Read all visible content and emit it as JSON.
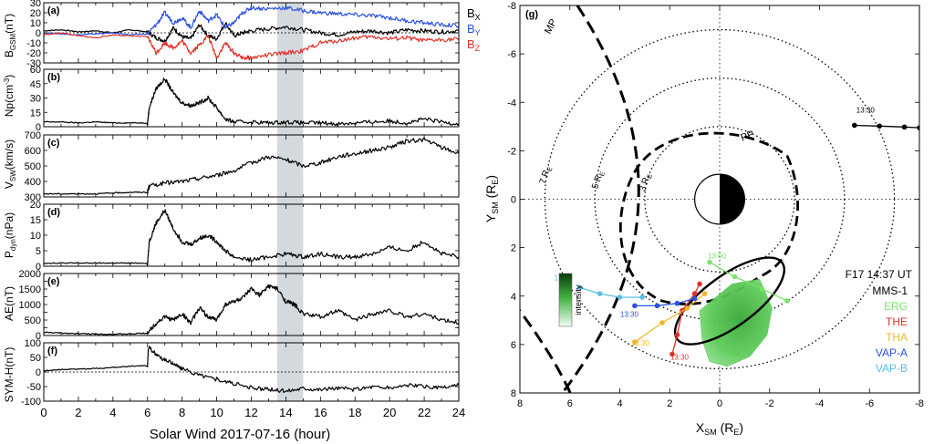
{
  "chart_data": [
    {
      "type": "line",
      "panel": "(a)",
      "ylabel": "B_GSM(nT)",
      "ylim": [
        -30,
        30
      ],
      "yticks": [
        -30,
        -20,
        -10,
        0,
        10,
        20,
        30
      ],
      "xlim": [
        0,
        24
      ],
      "series": [
        {
          "name": "B_X",
          "color": "#000000",
          "x": [
            0,
            1,
            2,
            3,
            4,
            5,
            6,
            6.5,
            7,
            7.5,
            8,
            8.5,
            9,
            9.5,
            10,
            10.5,
            11,
            11.5,
            12,
            13,
            14,
            15,
            16,
            17,
            18,
            19,
            20,
            21,
            22,
            23,
            24
          ],
          "values": [
            2,
            3,
            1,
            2,
            0,
            3,
            1,
            -5,
            -8,
            5,
            -4,
            -6,
            8,
            -3,
            -6,
            10,
            -3,
            0,
            2,
            4,
            6,
            3,
            0,
            -2,
            1,
            2,
            0,
            3,
            2,
            1,
            2
          ]
        },
        {
          "name": "B_Y",
          "color": "#2b50e0",
          "x": [
            0,
            1,
            2,
            3,
            4,
            5,
            6,
            6.5,
            7,
            7.5,
            8,
            8.5,
            9,
            9.5,
            10,
            10.5,
            11,
            11.5,
            12,
            13,
            14,
            15,
            16,
            17,
            18,
            19,
            20,
            21,
            22,
            23,
            24
          ],
          "values": [
            0,
            -1,
            -2,
            -1,
            0,
            -2,
            -1,
            8,
            20,
            10,
            15,
            5,
            22,
            12,
            18,
            5,
            10,
            20,
            25,
            24,
            25,
            22,
            20,
            19,
            18,
            17,
            15,
            12,
            10,
            8,
            7
          ]
        },
        {
          "name": "B_Z",
          "color": "#e0312a",
          "x": [
            0,
            1,
            2,
            3,
            4,
            5,
            6,
            6.5,
            7,
            7.5,
            8,
            8.5,
            9,
            9.5,
            10,
            10.5,
            11,
            11.5,
            12,
            13,
            14,
            15,
            16,
            17,
            18,
            19,
            20,
            21,
            22,
            23,
            24
          ],
          "values": [
            -2,
            0,
            -3,
            -5,
            -2,
            -3,
            -4,
            -20,
            -10,
            -15,
            -8,
            -20,
            -12,
            -3,
            -25,
            -10,
            -20,
            -25,
            -25,
            -22,
            -20,
            -18,
            -10,
            -8,
            -5,
            -4,
            -6,
            -5,
            -8,
            -7,
            -6
          ]
        }
      ]
    },
    {
      "type": "line",
      "panel": "(b)",
      "ylabel": "Np(cm⁻³)",
      "ylim": [
        0,
        60
      ],
      "yticks": [
        0,
        15,
        30,
        45,
        60
      ],
      "yticklabels": [
        "0",
        "15",
        "30",
        "45",
        "60"
      ],
      "xlim": [
        0,
        24
      ],
      "series": [
        {
          "name": "Np",
          "color": "#000000",
          "x": [
            0,
            1,
            2,
            3,
            4,
            5,
            6,
            6.1,
            6.5,
            7,
            7.5,
            8,
            8.5,
            9,
            9.5,
            10,
            10.5,
            11,
            12,
            13,
            14,
            15,
            16,
            17,
            18,
            19,
            20,
            21,
            22,
            23,
            24
          ],
          "values": [
            5,
            5,
            4,
            5,
            4,
            4,
            4,
            20,
            40,
            50,
            35,
            25,
            22,
            25,
            30,
            20,
            8,
            5,
            5,
            4,
            5,
            4,
            4,
            3,
            4,
            5,
            6,
            4,
            8,
            5,
            3
          ]
        }
      ]
    },
    {
      "type": "line",
      "panel": "(c)",
      "ylabel": "V_SW(km/s)",
      "ylim": [
        300,
        700
      ],
      "yticks": [
        300,
        400,
        500,
        600,
        700
      ],
      "yticklabels": [
        "300",
        "400",
        "500",
        "600",
        "700"
      ],
      "xlim": [
        0,
        24
      ],
      "series": [
        {
          "name": "V_SW",
          "color": "#000000",
          "x": [
            0,
            1,
            2,
            3,
            4,
            5,
            6,
            6.1,
            7,
            8,
            9,
            10,
            11,
            12,
            13,
            14,
            15,
            16,
            17,
            18,
            19,
            20,
            21,
            22,
            23,
            24
          ],
          "values": [
            320,
            320,
            320,
            320,
            325,
            330,
            330,
            370,
            390,
            400,
            420,
            440,
            470,
            520,
            560,
            540,
            500,
            520,
            560,
            580,
            600,
            620,
            660,
            670,
            620,
            580
          ]
        }
      ]
    },
    {
      "type": "line",
      "panel": "(d)",
      "ylabel": "P_dyn(nPa)",
      "ylim": [
        0,
        20
      ],
      "yticks": [
        0,
        5,
        10,
        15,
        20
      ],
      "yticklabels": [
        "0",
        "5",
        "10",
        "15",
        "20"
      ],
      "xlim": [
        0,
        24
      ],
      "series": [
        {
          "name": "P_dyn",
          "color": "#000000",
          "x": [
            0,
            1,
            2,
            3,
            4,
            5,
            6,
            6.1,
            6.5,
            7,
            7.5,
            8,
            8.5,
            9,
            9.5,
            10,
            10.5,
            11,
            12,
            13,
            14,
            15,
            16,
            17,
            18,
            19,
            20,
            21,
            22,
            23,
            24
          ],
          "values": [
            1,
            1,
            1,
            1,
            1,
            1,
            1,
            8,
            14,
            18,
            12,
            8,
            7,
            9,
            10,
            8,
            5,
            3,
            2,
            3,
            4,
            3,
            4,
            3,
            3,
            4,
            6,
            5,
            8,
            4,
            3
          ]
        }
      ]
    },
    {
      "type": "line",
      "panel": "(e)",
      "ylabel": "AE(nT)",
      "ylim": [
        0,
        2000
      ],
      "yticks": [
        0,
        250,
        500,
        750,
        1000,
        1250,
        1500,
        1750,
        2000
      ],
      "yticklabels": [
        "0",
        "",
        "500",
        "",
        "1000",
        "",
        "1500",
        "",
        "2000"
      ],
      "xlim": [
        0,
        24
      ],
      "series": [
        {
          "name": "AE",
          "color": "#000000",
          "x": [
            0,
            1,
            2,
            3,
            4,
            5,
            6,
            6.5,
            7,
            7.5,
            8,
            8.5,
            9,
            9.5,
            10,
            10.5,
            11,
            11.5,
            12,
            12.5,
            13,
            13.5,
            14,
            14.5,
            15,
            16,
            17,
            18,
            19,
            20,
            21,
            22,
            23,
            24
          ],
          "values": [
            100,
            80,
            60,
            50,
            40,
            50,
            80,
            400,
            600,
            500,
            700,
            400,
            900,
            600,
            500,
            1000,
            1100,
            1200,
            1500,
            1300,
            1600,
            1500,
            1100,
            1000,
            700,
            600,
            800,
            500,
            700,
            800,
            600,
            700,
            500,
            400
          ]
        }
      ]
    },
    {
      "type": "line",
      "panel": "(f)",
      "ylabel": "SYM-H(nT)",
      "ylim": [
        -100,
        100
      ],
      "yticks": [
        -100,
        -50,
        0,
        50,
        100
      ],
      "yticklabels": [
        "-100",
        "-50",
        "0",
        "50",
        "100"
      ],
      "xlim": [
        0,
        24
      ],
      "xticks": [
        0,
        2,
        4,
        6,
        8,
        10,
        12,
        14,
        16,
        18,
        20,
        22,
        24
      ],
      "xlabel": "Solar Wind 2017-07-16 (hour)",
      "series": [
        {
          "name": "SYM-H",
          "color": "#000000",
          "x": [
            0,
            1,
            2,
            3,
            4,
            5,
            6,
            6.05,
            6.5,
            7,
            7.5,
            8,
            9,
            10,
            11,
            12,
            13,
            14,
            15,
            16,
            17,
            18,
            19,
            20,
            21,
            22,
            23,
            24
          ],
          "values": [
            5,
            8,
            10,
            12,
            15,
            20,
            22,
            85,
            60,
            40,
            30,
            10,
            -10,
            -25,
            -40,
            -55,
            -60,
            -65,
            -55,
            -60,
            -55,
            -60,
            -50,
            -55,
            -45,
            -50,
            -55,
            -45
          ]
        }
      ]
    },
    {
      "type": "scatter",
      "panel": "(g)",
      "xlabel": "X_SM (R_E)",
      "ylabel": "Y_SM (R_E)",
      "xlim": [
        8,
        -8
      ],
      "ylim": [
        -8,
        8
      ],
      "xticks": [
        8,
        6,
        4,
        2,
        0,
        -2,
        -4,
        -6,
        -8
      ],
      "yticks": [
        -8,
        -6,
        -4,
        -2,
        0,
        2,
        4,
        6,
        8
      ],
      "circle_labels": [
        "7 R_E",
        "5 R_E",
        "3 R_E"
      ],
      "boundary_labels": [
        "MP",
        "PP"
      ],
      "colorbar_label": "intensity",
      "legend": {
        "title": "F17 14:37 UT",
        "entries": [
          {
            "label": "MMS-1",
            "color": "#000000"
          },
          {
            "label": "ERG",
            "color": "#7be36b"
          },
          {
            "label": "THE",
            "color": "#e0312a"
          },
          {
            "label": "THA",
            "color": "#f0b82a"
          },
          {
            "label": "VAP-A",
            "color": "#2b50e0"
          },
          {
            "label": "VAP-B",
            "color": "#5bbde8"
          }
        ]
      },
      "series": [
        {
          "name": "MMS-1",
          "color": "#000000",
          "time_label": "13:30",
          "x": [
            -5.4,
            -6.4,
            -7.4,
            -8.0
          ],
          "values": [
            -3.05,
            -3.02,
            -2.98,
            -2.95
          ]
        },
        {
          "name": "ERG",
          "color": "#7be36b",
          "time_label": "13:00",
          "x": [
            0.4,
            -0.6,
            -1.7,
            -2.7
          ],
          "values": [
            2.6,
            3.2,
            3.7,
            4.2
          ]
        },
        {
          "name": "THE",
          "color": "#e0312a",
          "time_label": "13:30",
          "x": [
            1.9,
            1.7,
            1.5,
            1.0,
            0.8
          ],
          "values": [
            6.4,
            5.6,
            4.6,
            3.9,
            3.5
          ]
        },
        {
          "name": "THA",
          "color": "#f0b82a",
          "time_label": "13:30",
          "x": [
            3.4,
            2.3,
            1.3,
            0.6
          ],
          "values": [
            5.9,
            5.1,
            4.5,
            3.9
          ]
        },
        {
          "name": "VAP-A",
          "color": "#2b50e0",
          "time_label": "13:30",
          "x": [
            3.4,
            2.5,
            1.7,
            1.0
          ],
          "values": [
            4.4,
            4.4,
            4.3,
            4.1
          ]
        },
        {
          "name": "VAP-B",
          "color": "#5bbde8",
          "time_label": "13:30",
          "x": [
            5.6,
            4.8,
            4.0,
            3.1
          ],
          "values": [
            3.65,
            3.9,
            4.05,
            4.05
          ]
        }
      ]
    }
  ],
  "labels": {
    "panel_a": "(a)",
    "panel_b": "(b)",
    "panel_c": "(c)",
    "panel_d": "(d)",
    "panel_e": "(e)",
    "panel_f": "(f)",
    "panel_g": "(g)",
    "bx": "B",
    "bx_sub": "X",
    "by": "B",
    "by_sub": "Y",
    "bz": "B",
    "bz_sub": "Z",
    "yl_a": "B",
    "yl_a_sub": "GSM",
    "yl_a_unit": "(nT)",
    "yl_b": "Np(cm",
    "yl_b_sup": "-3",
    "yl_b_end": ")",
    "yl_c": "V",
    "yl_c_sub": "SW",
    "yl_c_unit": "(km/s)",
    "yl_d": "P",
    "yl_d_sub": "dyn",
    "yl_d_unit": "(nPa)",
    "yl_e": "AE(nT)",
    "yl_f": "SYM-H(nT)",
    "xlabel_left": "Solar Wind 2017-07-16 (hour)",
    "xlabel_right": "X",
    "xlabel_right_sub": "SM",
    "xlabel_right_unit": " (R",
    "xlabel_right_unit_sub": "E",
    "xlabel_right_end": ")",
    "ylabel_right": "Y",
    "ylabel_right_sub": "SM",
    "ylabel_right_unit": " (R",
    "ylabel_right_unit_sub": "E",
    "ylabel_right_end": ")",
    "mp": "MP",
    "pp": "PP",
    "r7": "7 R",
    "r5": "5 R",
    "r3": "3 R",
    "r_sub": "E",
    "colorbar": "intensity",
    "legend_title": "F17 14:37 UT",
    "mms_time": "13:30",
    "erg_time": "13:00",
    "the_time": "13:30",
    "tha_time": "13:30",
    "vapa_time": "13:30",
    "vapb_time": "13:30"
  },
  "colors": {
    "bx": "#000000",
    "by": "#2b50e0",
    "bz": "#e0312a",
    "shade": "#d3d9dc",
    "erg": "#7be36b",
    "the": "#e0312a",
    "tha": "#f0b82a",
    "vapa": "#2b50e0",
    "vapb": "#5bbde8",
    "aurora": "#4cc54a"
  }
}
